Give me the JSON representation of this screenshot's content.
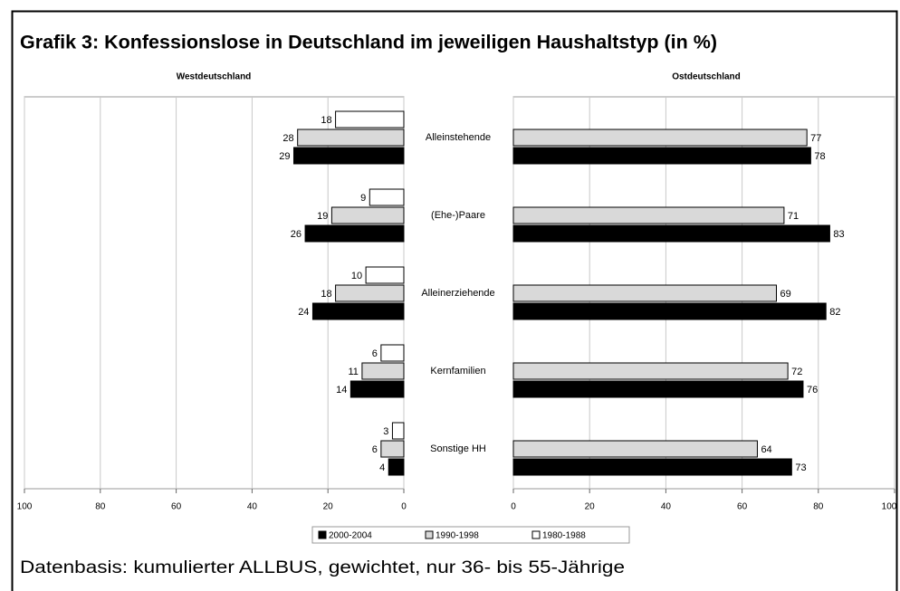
{
  "title": "Grafik 3: Konfessionslose in Deutschland im jeweiligen Haushaltstyp (in %)",
  "source": "Datenbasis: kumulierter ALLBUS, gewichtet, nur 36- bis 55-Jährige",
  "chart_data": [
    {
      "type": "bar",
      "orientation": "horizontal",
      "title": "Westdeutschland",
      "categories": [
        "Alleinstehende",
        "(Ehe-)Paare",
        "Alleinerziehende",
        "Kernfamilien",
        "Sonstige HH"
      ],
      "series": [
        {
          "name": "2000-2004",
          "color": "#000000",
          "values": [
            29,
            26,
            24,
            14,
            4
          ]
        },
        {
          "name": "1990-1998",
          "color": "#d9d9d9",
          "values": [
            28,
            19,
            18,
            11,
            6
          ]
        },
        {
          "name": "1980-1988",
          "color": "#ffffff",
          "values": [
            18,
            9,
            10,
            6,
            3
          ]
        }
      ],
      "xlim": [
        100,
        0
      ],
      "xticks": [
        100,
        80,
        60,
        40,
        20,
        0
      ],
      "grid": true
    },
    {
      "type": "bar",
      "orientation": "horizontal",
      "title": "Ostdeutschland",
      "series": [
        {
          "color": "#000000",
          "values": [
            78,
            83,
            82,
            76,
            73
          ]
        },
        {
          "color": "#d9d9d9",
          "values": [
            77,
            71,
            69,
            72,
            64
          ]
        }
      ],
      "xlim": [
        0,
        100
      ],
      "xticks": [
        0,
        20,
        40,
        60,
        80,
        100
      ],
      "grid": true
    }
  ]
}
